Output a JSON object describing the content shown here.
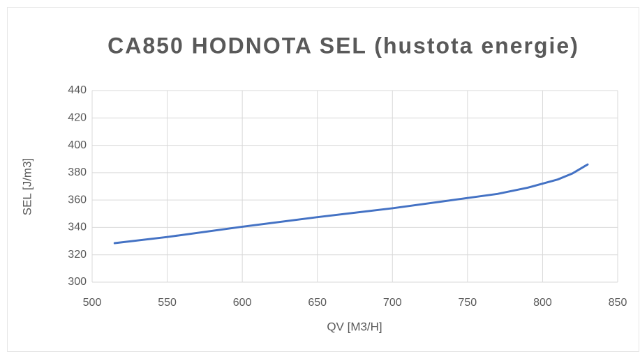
{
  "chart_data": {
    "type": "line",
    "title": "CA850 HODNOTA SEL (hustota energie)",
    "x_label": "QV [M3/H]",
    "y_label": "SEL [J/m3]",
    "x": [
      515,
      550,
      600,
      650,
      700,
      750,
      770,
      790,
      800,
      810,
      820,
      830
    ],
    "series": [
      {
        "name": "SEL",
        "color": "#4472c4",
        "values": [
          328.5,
          333,
          340.5,
          347.5,
          354,
          361.5,
          364.5,
          369,
          372,
          375,
          379.5,
          386
        ]
      }
    ],
    "xlim": [
      500,
      850
    ],
    "xticks": [
      500,
      550,
      600,
      650,
      700,
      750,
      800,
      850
    ],
    "ylim": [
      300,
      440
    ],
    "yticks": [
      300,
      320,
      340,
      360,
      380,
      400,
      420,
      440
    ],
    "grid": true
  }
}
